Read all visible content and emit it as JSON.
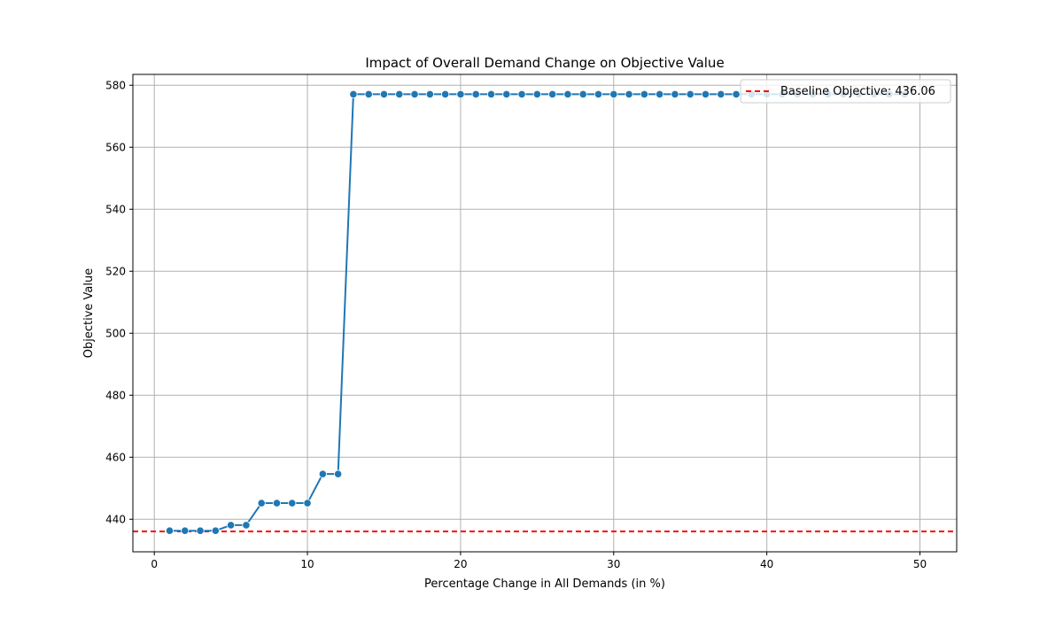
{
  "chart_data": {
    "type": "line",
    "title": "Impact of Overall Demand Change on Objective Value",
    "xlabel": "Percentage Change in All Demands (in %)",
    "ylabel": "Objective Value",
    "xlim": [
      -1.4,
      52.4
    ],
    "ylim": [
      429.5,
      583.5
    ],
    "x_ticks": [
      0,
      10,
      20,
      30,
      40,
      50
    ],
    "y_ticks": [
      440,
      460,
      480,
      500,
      520,
      540,
      560,
      580
    ],
    "grid": true,
    "legend_position": "top-right",
    "series": [
      {
        "name": "",
        "color": "#1f77b4",
        "marker": "circle",
        "x": [
          1,
          2,
          3,
          4,
          5,
          6,
          7,
          8,
          9,
          10,
          11,
          12,
          13,
          14,
          15,
          16,
          17,
          18,
          19,
          20,
          21,
          22,
          23,
          24,
          25,
          26,
          27,
          28,
          29,
          30,
          31,
          32,
          33,
          34,
          35,
          36,
          37,
          38,
          39,
          40,
          41,
          42,
          43,
          44,
          45,
          46,
          47,
          48,
          49
        ],
        "y": [
          436.3,
          436.3,
          436.3,
          436.3,
          438.1,
          438.1,
          445.2,
          445.2,
          445.2,
          445.2,
          454.6,
          454.6,
          577.1,
          577.1,
          577.1,
          577.1,
          577.1,
          577.1,
          577.1,
          577.1,
          577.1,
          577.1,
          577.1,
          577.1,
          577.1,
          577.1,
          577.1,
          577.1,
          577.1,
          577.1,
          577.1,
          577.1,
          577.1,
          577.1,
          577.1,
          577.1,
          577.1,
          577.1,
          577.1,
          577.1,
          577.1,
          577.1,
          577.1,
          577.1,
          577.1,
          577.1,
          577.1,
          577.1,
          577.1
        ]
      }
    ],
    "reference_line": {
      "name": "Baseline Objective: 436.06",
      "y": 436.06,
      "color": "#ff0000",
      "style": "dashed"
    }
  }
}
